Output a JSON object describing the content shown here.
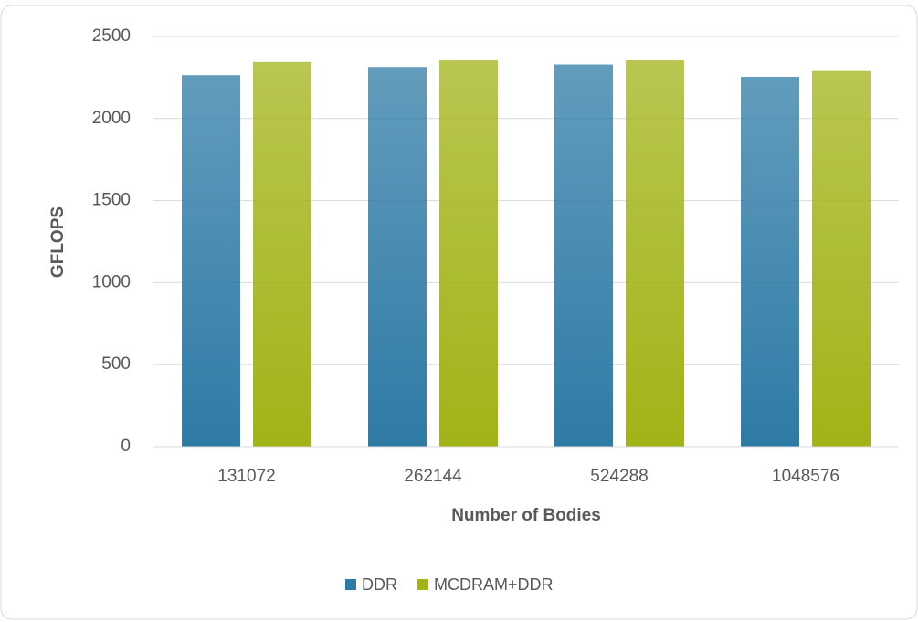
{
  "chart_data": {
    "type": "bar",
    "x_label": "Number of Bodies",
    "y_label": "GFLOPS",
    "categories": [
      "131072",
      "262144",
      "524288",
      "1048576"
    ],
    "series": [
      {
        "name": "DDR",
        "color": "#2e7ba6",
        "values": [
          2265,
          2315,
          2330,
          2255
        ]
      },
      {
        "name": "MCDRAM+DDR",
        "color": "#a2b317",
        "values": [
          2345,
          2355,
          2355,
          2290
        ]
      }
    ],
    "ylim": [
      0,
      2500
    ],
    "yticks": [
      0,
      500,
      1000,
      1500,
      2000,
      2500
    ],
    "grid": true,
    "legend": "bottom"
  }
}
